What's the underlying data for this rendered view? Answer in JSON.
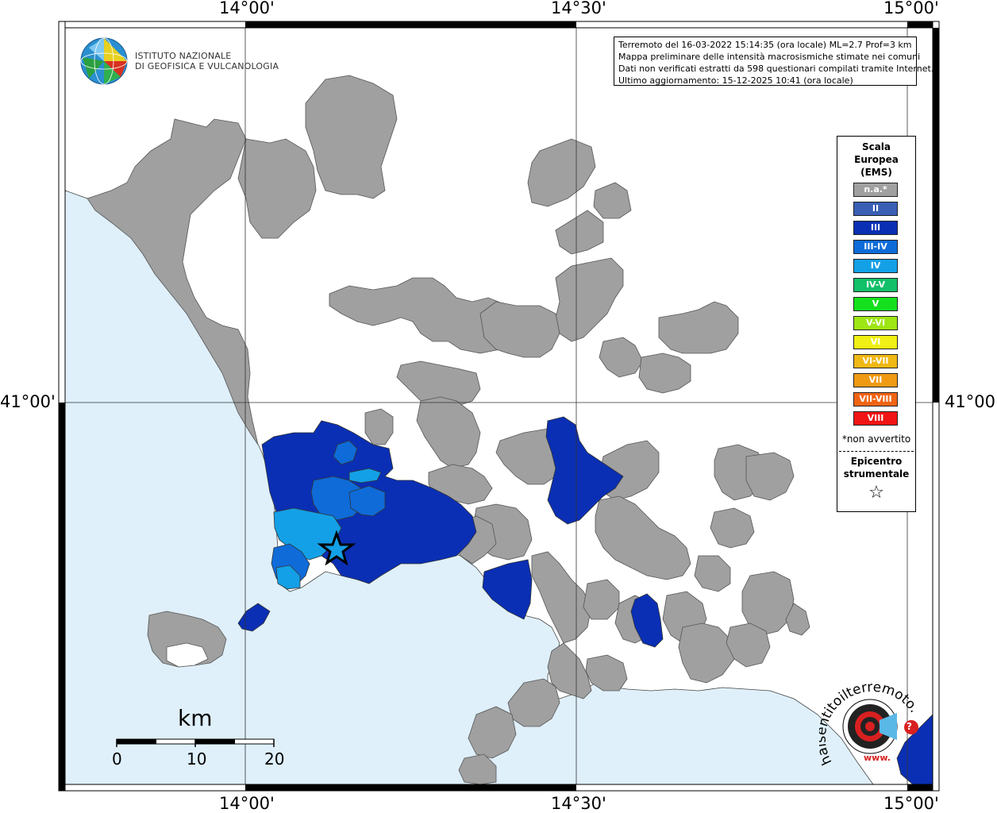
{
  "coords": {
    "top": [
      "14°00'",
      "14°30'",
      "15°00'"
    ],
    "bottom": [
      "14°00'",
      "14°30'",
      "15°00'"
    ],
    "left": "41°00'",
    "right": "41°00'"
  },
  "logo": {
    "line1": "ISTITUTO NAZIONALE",
    "line2": "DI GEOFISICA E VULCANOLOGIA"
  },
  "info": {
    "line1": "Terremoto del 16-03-2022 15:14:35 (ora locale) ML=2.7 Prof=3 km",
    "line2": "Mappa preliminare delle intensità macrosismiche stimate nei comuni",
    "line3": "Dati non verificati estratti da 598 questionari compilati tramite Internet.",
    "line4": "Ultimo aggiornamento: 15-12-2025 10:41 (ora locale)"
  },
  "legend": {
    "title1": "Scala",
    "title2": "Europea",
    "title3": "(EMS)",
    "items": [
      {
        "label": "n.a.*",
        "color": "#a0a0a0"
      },
      {
        "label": "II",
        "color": "#3a5fb4"
      },
      {
        "label": "III",
        "color": "#0a2fb4"
      },
      {
        "label": "III-IV",
        "color": "#0e6bd8"
      },
      {
        "label": "IV",
        "color": "#14a0e6"
      },
      {
        "label": "IV-V",
        "color": "#12c06a"
      },
      {
        "label": "V",
        "color": "#14e01e"
      },
      {
        "label": "V-VI",
        "color": "#9ee614"
      },
      {
        "label": "VI",
        "color": "#f0f014"
      },
      {
        "label": "VI-VII",
        "color": "#f0b814"
      },
      {
        "label": "VII",
        "color": "#f09a14"
      },
      {
        "label": "VII-VIII",
        "color": "#f06414"
      },
      {
        "label": "VIII",
        "color": "#f01414"
      }
    ],
    "note": "*non avvertito",
    "epi1": "Epicentro",
    "epi2": "strumentale",
    "star": "☆"
  },
  "scale": {
    "unit": "km",
    "ticks": [
      "0",
      "10",
      "20"
    ]
  },
  "brand": {
    "text": "haisentitoilterremoto.it",
    "www": "www.",
    "question": "?"
  },
  "colors": {
    "sea": "#dff0fb",
    "land_na": "#a0a0a0",
    "int_III": "#0a2fb4",
    "int_IIIIV": "#0e6bd8",
    "int_IV": "#14a0e6"
  }
}
